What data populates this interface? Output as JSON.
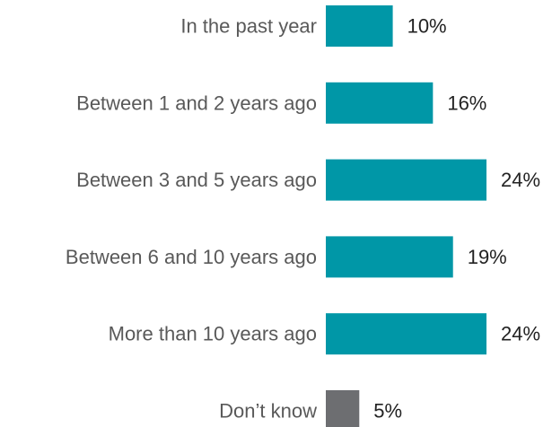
{
  "chart_data": {
    "type": "bar",
    "orientation": "horizontal",
    "categories": [
      "In the past year",
      "Between 1 and 2 years ago",
      "Between 3 and 5 years ago",
      "Between 6 and 10 years ago",
      "More than 10 years ago",
      "Don’t know"
    ],
    "values": [
      10,
      16,
      24,
      19,
      24,
      5
    ],
    "value_labels": [
      "10%",
      "16%",
      "24%",
      "19%",
      "24%",
      "5%"
    ],
    "unit": "%",
    "colors": [
      "#0097a7",
      "#0097a7",
      "#0097a7",
      "#0097a7",
      "#0097a7",
      "#6d6e71"
    ],
    "grid": false,
    "legend": "none",
    "title": "",
    "xlabel": "",
    "ylabel": "",
    "xlim": [
      0,
      24
    ]
  }
}
